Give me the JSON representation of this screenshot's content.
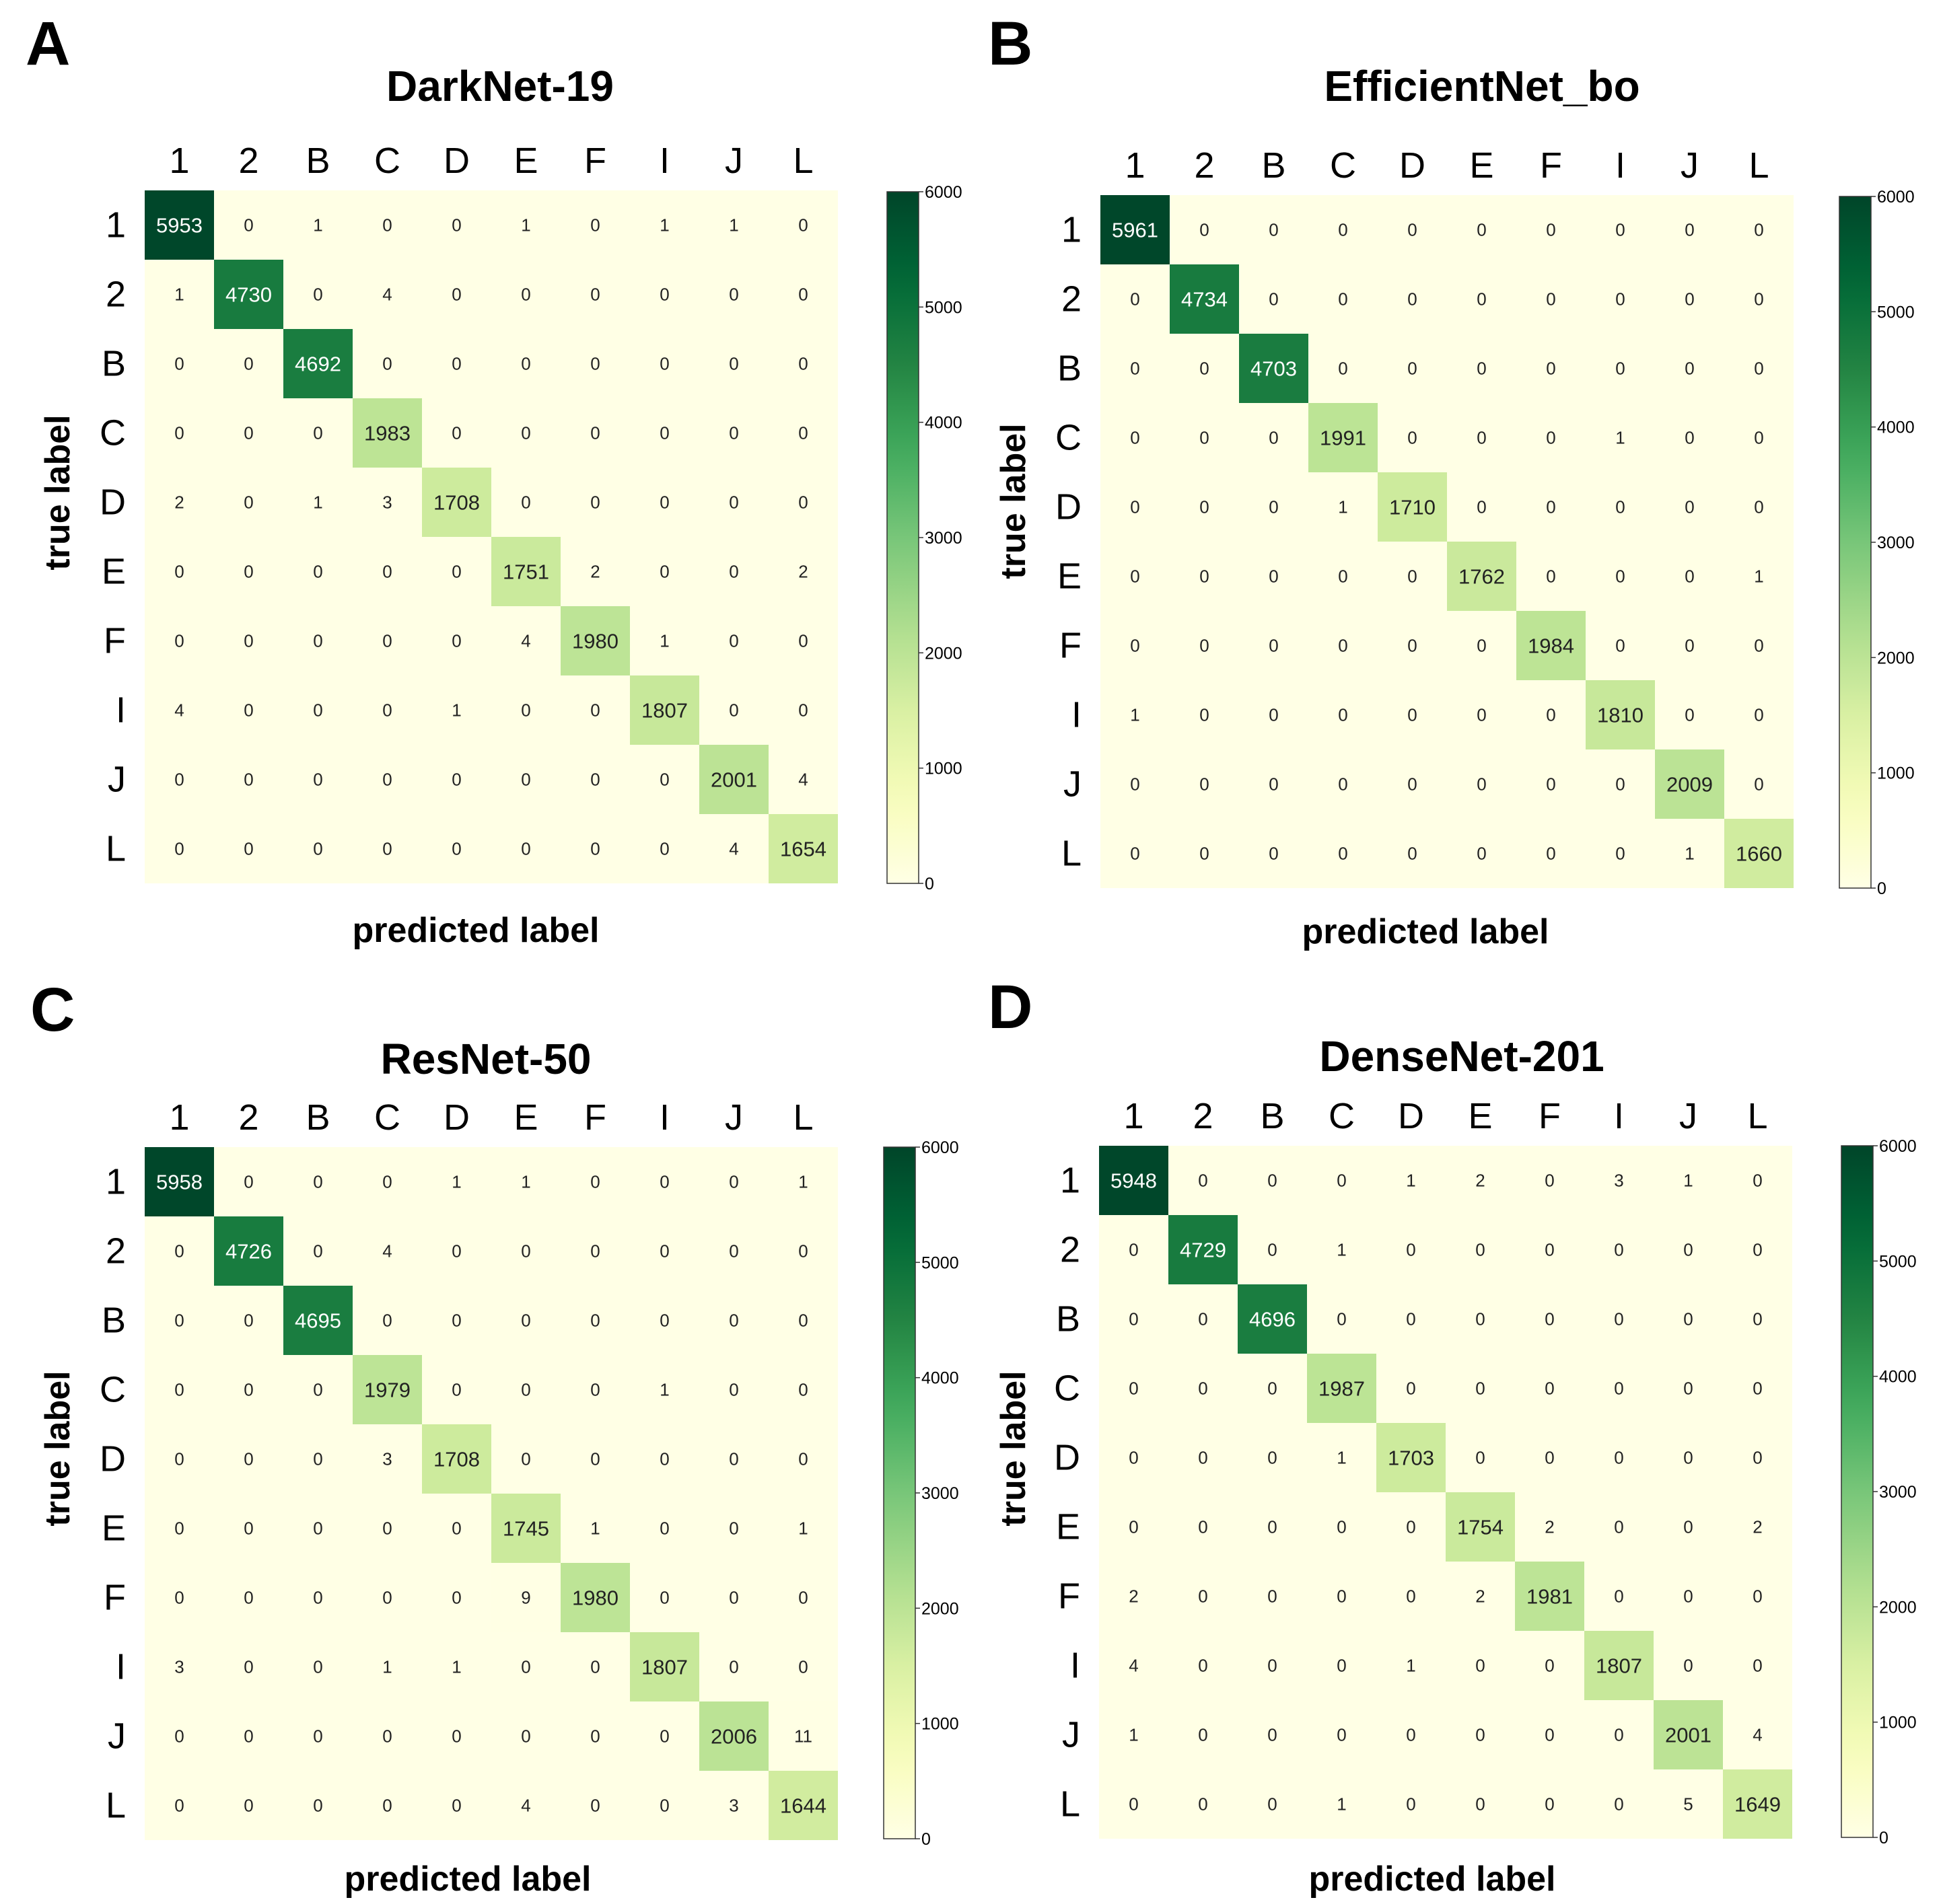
{
  "figure": {
    "colormap": [
      "#ffffe5",
      "#f7fcb9",
      "#d9f0a3",
      "#addd8e",
      "#78c679",
      "#41ab5d",
      "#238443",
      "#006837",
      "#004529"
    ],
    "labels": {
      "x_axis": "predicted label",
      "y_axis": "true label"
    }
  },
  "chart_data": [
    {
      "type": "heatmap",
      "panel": "A",
      "title": "DarkNet-19",
      "xlabel": "predicted label",
      "ylabel": "true label",
      "x_categories": [
        "1",
        "2",
        "B",
        "C",
        "D",
        "E",
        "F",
        "I",
        "J",
        "L"
      ],
      "y_categories": [
        "1",
        "2",
        "B",
        "C",
        "D",
        "E",
        "F",
        "I",
        "J",
        "L"
      ],
      "matrix": [
        [
          5953,
          0,
          1,
          0,
          0,
          1,
          0,
          1,
          1,
          0
        ],
        [
          1,
          4730,
          0,
          4,
          0,
          0,
          0,
          0,
          0,
          0
        ],
        [
          0,
          0,
          4692,
          0,
          0,
          0,
          0,
          0,
          0,
          0
        ],
        [
          0,
          0,
          0,
          1983,
          0,
          0,
          0,
          0,
          0,
          0
        ],
        [
          2,
          0,
          1,
          3,
          1708,
          0,
          0,
          0,
          0,
          0
        ],
        [
          0,
          0,
          0,
          0,
          0,
          1751,
          2,
          0,
          0,
          2
        ],
        [
          0,
          0,
          0,
          0,
          0,
          4,
          1980,
          1,
          0,
          0
        ],
        [
          4,
          0,
          0,
          0,
          1,
          0,
          0,
          1807,
          0,
          0
        ],
        [
          0,
          0,
          0,
          0,
          0,
          0,
          0,
          0,
          2001,
          4
        ],
        [
          0,
          0,
          0,
          0,
          0,
          0,
          0,
          0,
          4,
          1654
        ]
      ],
      "colorbar": {
        "range": [
          0,
          6000
        ],
        "ticks": [
          "0",
          "1000",
          "2000",
          "3000",
          "4000",
          "5000",
          "6000"
        ]
      }
    },
    {
      "type": "heatmap",
      "panel": "B",
      "title": "EfficientNet_bo",
      "xlabel": "predicted label",
      "ylabel": "true label",
      "x_categories": [
        "1",
        "2",
        "B",
        "C",
        "D",
        "E",
        "F",
        "I",
        "J",
        "L"
      ],
      "y_categories": [
        "1",
        "2",
        "B",
        "C",
        "D",
        "E",
        "F",
        "I",
        "J",
        "L"
      ],
      "matrix": [
        [
          5961,
          0,
          0,
          0,
          0,
          0,
          0,
          0,
          0,
          0
        ],
        [
          0,
          4734,
          0,
          0,
          0,
          0,
          0,
          0,
          0,
          0
        ],
        [
          0,
          0,
          4703,
          0,
          0,
          0,
          0,
          0,
          0,
          0
        ],
        [
          0,
          0,
          0,
          1991,
          0,
          0,
          0,
          1,
          0,
          0
        ],
        [
          0,
          0,
          0,
          1,
          1710,
          0,
          0,
          0,
          0,
          0
        ],
        [
          0,
          0,
          0,
          0,
          0,
          1762,
          0,
          0,
          0,
          1
        ],
        [
          0,
          0,
          0,
          0,
          0,
          0,
          1984,
          0,
          0,
          0
        ],
        [
          1,
          0,
          0,
          0,
          0,
          0,
          0,
          1810,
          0,
          0
        ],
        [
          0,
          0,
          0,
          0,
          0,
          0,
          0,
          0,
          2009,
          0
        ],
        [
          0,
          0,
          0,
          0,
          0,
          0,
          0,
          0,
          1,
          1660
        ]
      ],
      "colorbar": {
        "range": [
          0,
          6000
        ],
        "ticks": [
          "0",
          "1000",
          "2000",
          "3000",
          "4000",
          "5000",
          "6000"
        ]
      }
    },
    {
      "type": "heatmap",
      "panel": "C",
      "title": "ResNet-50",
      "xlabel": "predicted label",
      "ylabel": "true label",
      "x_categories": [
        "1",
        "2",
        "B",
        "C",
        "D",
        "E",
        "F",
        "I",
        "J",
        "L"
      ],
      "y_categories": [
        "1",
        "2",
        "B",
        "C",
        "D",
        "E",
        "F",
        "I",
        "J",
        "L"
      ],
      "matrix": [
        [
          5958,
          0,
          0,
          0,
          1,
          1,
          0,
          0,
          0,
          1
        ],
        [
          0,
          4726,
          0,
          4,
          0,
          0,
          0,
          0,
          0,
          0
        ],
        [
          0,
          0,
          4695,
          0,
          0,
          0,
          0,
          0,
          0,
          0
        ],
        [
          0,
          0,
          0,
          1979,
          0,
          0,
          0,
          1,
          0,
          0
        ],
        [
          0,
          0,
          0,
          3,
          1708,
          0,
          0,
          0,
          0,
          0
        ],
        [
          0,
          0,
          0,
          0,
          0,
          1745,
          1,
          0,
          0,
          1
        ],
        [
          0,
          0,
          0,
          0,
          0,
          9,
          1980,
          0,
          0,
          0
        ],
        [
          3,
          0,
          0,
          1,
          1,
          0,
          0,
          1807,
          0,
          0
        ],
        [
          0,
          0,
          0,
          0,
          0,
          0,
          0,
          0,
          2006,
          11
        ],
        [
          0,
          0,
          0,
          0,
          0,
          4,
          0,
          0,
          3,
          1644
        ]
      ],
      "colorbar": {
        "range": [
          0,
          6000
        ],
        "ticks": [
          "0",
          "1000",
          "2000",
          "3000",
          "4000",
          "5000",
          "6000"
        ]
      }
    },
    {
      "type": "heatmap",
      "panel": "D",
      "title": "DenseNet-201",
      "xlabel": "predicted label",
      "ylabel": "true label",
      "x_categories": [
        "1",
        "2",
        "B",
        "C",
        "D",
        "E",
        "F",
        "I",
        "J",
        "L"
      ],
      "y_categories": [
        "1",
        "2",
        "B",
        "C",
        "D",
        "E",
        "F",
        "I",
        "J",
        "L"
      ],
      "matrix": [
        [
          5948,
          0,
          0,
          0,
          1,
          2,
          0,
          3,
          1,
          0
        ],
        [
          0,
          4729,
          0,
          1,
          0,
          0,
          0,
          0,
          0,
          0
        ],
        [
          0,
          0,
          4696,
          0,
          0,
          0,
          0,
          0,
          0,
          0
        ],
        [
          0,
          0,
          0,
          1987,
          0,
          0,
          0,
          0,
          0,
          0
        ],
        [
          0,
          0,
          0,
          1,
          1703,
          0,
          0,
          0,
          0,
          0
        ],
        [
          0,
          0,
          0,
          0,
          0,
          1754,
          2,
          0,
          0,
          2
        ],
        [
          2,
          0,
          0,
          0,
          0,
          2,
          1981,
          0,
          0,
          0
        ],
        [
          4,
          0,
          0,
          0,
          1,
          0,
          0,
          1807,
          0,
          0
        ],
        [
          1,
          0,
          0,
          0,
          0,
          0,
          0,
          0,
          2001,
          4
        ],
        [
          0,
          0,
          0,
          1,
          0,
          0,
          0,
          0,
          5,
          1649
        ]
      ],
      "colorbar": {
        "range": [
          0,
          6000
        ],
        "ticks": [
          "0",
          "1000",
          "2000",
          "3000",
          "4000",
          "5000",
          "6000"
        ]
      }
    }
  ]
}
